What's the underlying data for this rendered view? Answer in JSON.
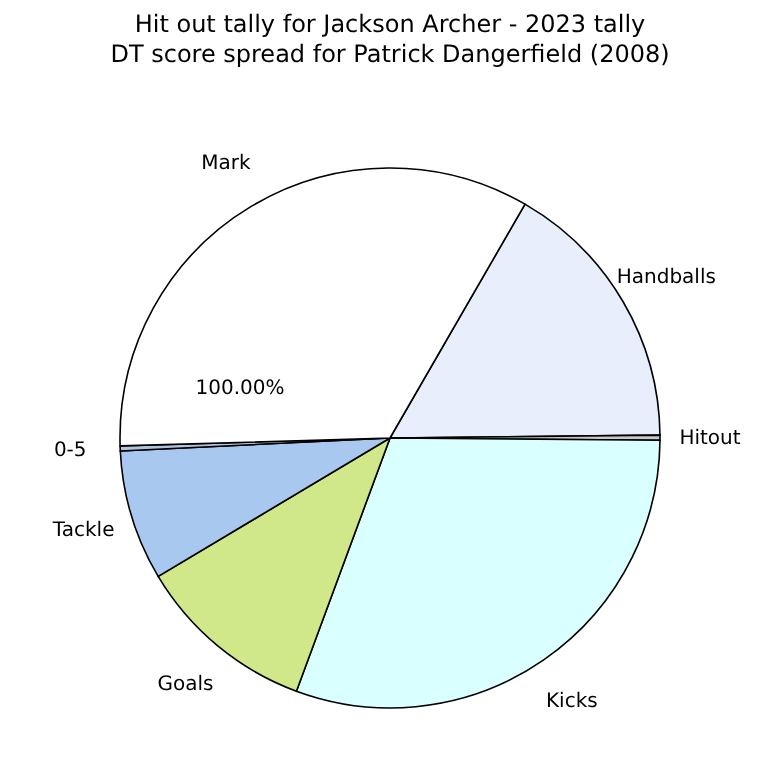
{
  "chart_data": {
    "type": "pie",
    "title": "Hit out tally for Jackson Archer - 2023 tally",
    "subtitle": "DT score spread for Patrick Dangerfield (2008)",
    "categories": [
      "Handballs",
      "Hitout",
      "Kicks",
      "Goals",
      "Tackle",
      "0-5",
      "Mark"
    ],
    "values": [
      16.5,
      0.3,
      30.5,
      10.8,
      7.8,
      0.3,
      33.8
    ],
    "colors": [
      "#e8eefc",
      "#c8c8c8",
      "#d9ffff",
      "#d0e88a",
      "#a9c8f0",
      "#b0c4de",
      "#ffffff"
    ],
    "annotations": [
      "100.00%"
    ],
    "legend": false
  }
}
